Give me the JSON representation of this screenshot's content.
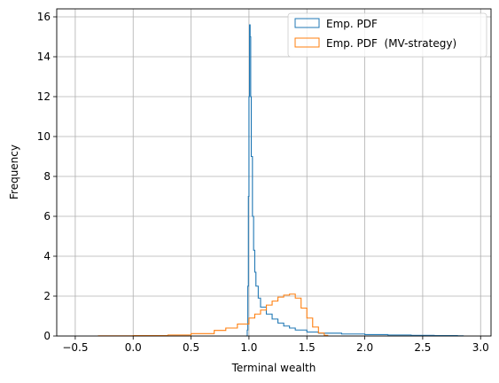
{
  "chart_data": {
    "type": "histogram-step",
    "title": "",
    "xlabel": "Terminal wealth",
    "ylabel": "Frequency",
    "xlim": [
      -0.66,
      3.09
    ],
    "ylim": [
      0,
      16.4
    ],
    "xticks": [
      -0.5,
      0.0,
      0.5,
      1.0,
      1.5,
      2.0,
      2.5,
      3.0
    ],
    "xtick_labels": [
      "−0.5",
      "0.0",
      "0.5",
      "1.0",
      "1.5",
      "2.0",
      "2.5",
      "3.0"
    ],
    "yticks": [
      0,
      2,
      4,
      6,
      8,
      10,
      12,
      14,
      16
    ],
    "ytick_labels": [
      "0",
      "2",
      "4",
      "6",
      "8",
      "10",
      "12",
      "14",
      "16"
    ],
    "grid": true,
    "legend_position": "top-right",
    "series": [
      {
        "name": "Emp. PDF",
        "color": "#1f77b4",
        "points": [
          [
            0.97,
            0
          ],
          [
            0.985,
            0.3
          ],
          [
            0.99,
            2.5
          ],
          [
            0.995,
            7.0
          ],
          [
            1.0,
            12.0
          ],
          [
            1.005,
            15.6
          ],
          [
            1.01,
            15.0
          ],
          [
            1.015,
            12.0
          ],
          [
            1.02,
            9.0
          ],
          [
            1.03,
            6.0
          ],
          [
            1.04,
            4.3
          ],
          [
            1.05,
            3.2
          ],
          [
            1.06,
            2.5
          ],
          [
            1.08,
            1.9
          ],
          [
            1.1,
            1.45
          ],
          [
            1.15,
            1.1
          ],
          [
            1.2,
            0.85
          ],
          [
            1.25,
            0.65
          ],
          [
            1.3,
            0.5
          ],
          [
            1.35,
            0.4
          ],
          [
            1.4,
            0.3
          ],
          [
            1.5,
            0.2
          ],
          [
            1.6,
            0.14
          ],
          [
            1.8,
            0.1
          ],
          [
            2.0,
            0.07
          ],
          [
            2.2,
            0.05
          ],
          [
            2.4,
            0.03
          ],
          [
            2.6,
            0.02
          ],
          [
            2.8,
            0.01
          ],
          [
            2.85,
            0
          ]
        ]
      },
      {
        "name": "Emp. PDF  (MV-strategy)",
        "color": "#ff7f0e",
        "points": [
          [
            -0.3,
            0
          ],
          [
            -0.3,
            0.01
          ],
          [
            0.0,
            0.02
          ],
          [
            0.3,
            0.05
          ],
          [
            0.5,
            0.12
          ],
          [
            0.7,
            0.28
          ],
          [
            0.8,
            0.4
          ],
          [
            0.9,
            0.6
          ],
          [
            1.0,
            0.9
          ],
          [
            1.05,
            1.1
          ],
          [
            1.1,
            1.3
          ],
          [
            1.15,
            1.55
          ],
          [
            1.2,
            1.75
          ],
          [
            1.25,
            1.95
          ],
          [
            1.3,
            2.05
          ],
          [
            1.35,
            2.1
          ],
          [
            1.4,
            1.9
          ],
          [
            1.45,
            1.4
          ],
          [
            1.5,
            0.9
          ],
          [
            1.55,
            0.45
          ],
          [
            1.6,
            0.15
          ],
          [
            1.65,
            0.03
          ],
          [
            1.68,
            0
          ]
        ]
      }
    ]
  }
}
